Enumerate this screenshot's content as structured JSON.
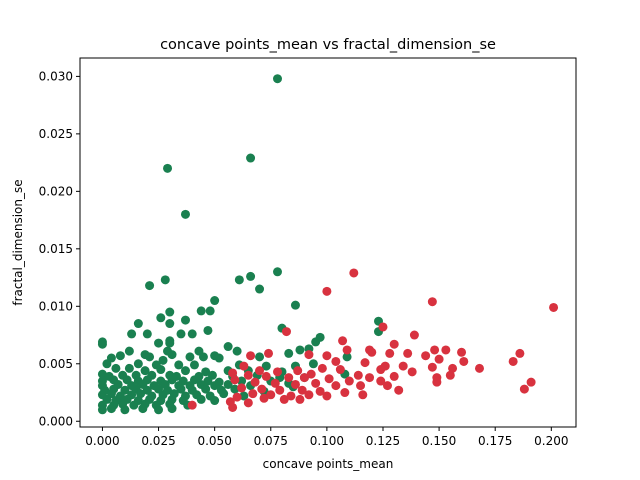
{
  "chart_data": {
    "type": "scatter",
    "title": "concave points_mean vs fractal_dimension_se",
    "xlabel": "concave points_mean",
    "ylabel": "fractal_dimension_se",
    "xlim": [
      -0.01,
      0.211
    ],
    "ylim": [
      -0.0005,
      0.0316
    ],
    "grid": false,
    "legend": "none",
    "x_ticks": [
      {
        "value": 0.0,
        "label": "0.000"
      },
      {
        "value": 0.025,
        "label": "0.025"
      },
      {
        "value": 0.05,
        "label": "0.050"
      },
      {
        "value": 0.075,
        "label": "0.075"
      },
      {
        "value": 0.1,
        "label": "0.100"
      },
      {
        "value": 0.125,
        "label": "0.125"
      },
      {
        "value": 0.15,
        "label": "0.150"
      },
      {
        "value": 0.175,
        "label": "0.175"
      },
      {
        "value": 0.2,
        "label": "0.200"
      }
    ],
    "y_ticks": [
      {
        "value": 0.0,
        "label": "0.000"
      },
      {
        "value": 0.005,
        "label": "0.005"
      },
      {
        "value": 0.01,
        "label": "0.010"
      },
      {
        "value": 0.015,
        "label": "0.015"
      },
      {
        "value": 0.02,
        "label": "0.020"
      },
      {
        "value": 0.025,
        "label": "0.025"
      },
      {
        "value": 0.03,
        "label": "0.030"
      }
    ],
    "series": [
      {
        "color": "#1a8050",
        "points": [
          [
            0.078,
            0.0298
          ],
          [
            0.029,
            0.022
          ],
          [
            0.066,
            0.0229
          ],
          [
            0.037,
            0.018
          ],
          [
            0.028,
            0.0123
          ],
          [
            0.021,
            0.0118
          ],
          [
            0.066,
            0.0126
          ],
          [
            0.061,
            0.0123
          ],
          [
            0.07,
            0.0115
          ],
          [
            0.078,
            0.013
          ],
          [
            0.086,
            0.0101
          ],
          [
            0.05,
            0.0105
          ],
          [
            0.044,
            0.0096
          ],
          [
            0.048,
            0.0096
          ],
          [
            0.03,
            0.0095
          ],
          [
            0.026,
            0.009
          ],
          [
            0.123,
            0.0087
          ],
          [
            0.016,
            0.0085
          ],
          [
            0.03,
            0.0085
          ],
          [
            0.037,
            0.0088
          ],
          [
            0.08,
            0.0081
          ],
          [
            0.123,
            0.0078
          ],
          [
            0.013,
            0.0076
          ],
          [
            0.02,
            0.0076
          ],
          [
            0.035,
            0.0076
          ],
          [
            0.04,
            0.0076
          ],
          [
            0.047,
            0.0079
          ],
          [
            0.03,
            0.007
          ],
          [
            0.025,
            0.0068
          ],
          [
            0.03,
            0.0068
          ],
          [
            0.0,
            0.0069
          ],
          [
            0.0,
            0.0067
          ],
          [
            0.097,
            0.0073
          ],
          [
            0.095,
            0.0069
          ],
          [
            0.109,
            0.0056
          ],
          [
            0.056,
            0.0065
          ],
          [
            0.083,
            0.0059
          ],
          [
            0.088,
            0.0062
          ],
          [
            0.092,
            0.0063
          ],
          [
            0.012,
            0.0061
          ],
          [
            0.029,
            0.0061
          ],
          [
            0.043,
            0.0061
          ],
          [
            0.06,
            0.0061
          ],
          [
            0.019,
            0.0058
          ],
          [
            0.021,
            0.0056
          ],
          [
            0.031,
            0.0058
          ],
          [
            0.05,
            0.0057
          ],
          [
            0.07,
            0.0056
          ],
          [
            0.004,
            0.0055
          ],
          [
            0.008,
            0.0057
          ],
          [
            0.027,
            0.0053
          ],
          [
            0.039,
            0.0056
          ],
          [
            0.045,
            0.0056
          ],
          [
            0.052,
            0.0055
          ],
          [
            0.002,
            0.005
          ],
          [
            0.016,
            0.005
          ],
          [
            0.024,
            0.0049
          ],
          [
            0.034,
            0.0049
          ],
          [
            0.041,
            0.0049
          ],
          [
            0.061,
            0.0049
          ],
          [
            0.073,
            0.0048
          ],
          [
            0.086,
            0.0048
          ],
          [
            0.094,
            0.005
          ],
          [
            0.006,
            0.0046
          ],
          [
            0.012,
            0.0046
          ],
          [
            0.019,
            0.0044
          ],
          [
            0.026,
            0.0045
          ],
          [
            0.037,
            0.0044
          ],
          [
            0.046,
            0.0043
          ],
          [
            0.056,
            0.0044
          ],
          [
            0.065,
            0.0044
          ],
          [
            0.08,
            0.0043
          ],
          [
            0.108,
            0.0041
          ],
          [
            0.0,
            0.0041
          ],
          [
            0.003,
            0.0039
          ],
          [
            0.009,
            0.004
          ],
          [
            0.015,
            0.004
          ],
          [
            0.022,
            0.004
          ],
          [
            0.03,
            0.004
          ],
          [
            0.033,
            0.0039
          ],
          [
            0.043,
            0.0039
          ],
          [
            0.049,
            0.004
          ],
          [
            0.058,
            0.0039
          ],
          [
            0.069,
            0.004
          ],
          [
            0.079,
            0.0038
          ],
          [
            0.09,
            0.0038
          ],
          [
            0.0,
            0.0035
          ],
          [
            0.005,
            0.0036
          ],
          [
            0.011,
            0.0036
          ],
          [
            0.016,
            0.0035
          ],
          [
            0.02,
            0.0036
          ],
          [
            0.026,
            0.0035
          ],
          [
            0.031,
            0.0036
          ],
          [
            0.036,
            0.0035
          ],
          [
            0.041,
            0.0036
          ],
          [
            0.047,
            0.0035
          ],
          [
            0.052,
            0.0034
          ],
          [
            0.062,
            0.0035
          ],
          [
            0.075,
            0.0035
          ],
          [
            0.083,
            0.0033
          ],
          [
            0.0,
            0.0031
          ],
          [
            0.007,
            0.0032
          ],
          [
            0.013,
            0.0031
          ],
          [
            0.018,
            0.0032
          ],
          [
            0.023,
            0.0031
          ],
          [
            0.028,
            0.0032
          ],
          [
            0.034,
            0.0031
          ],
          [
            0.039,
            0.0031
          ],
          [
            0.044,
            0.0032
          ],
          [
            0.05,
            0.0031
          ],
          [
            0.056,
            0.0032
          ],
          [
            0.066,
            0.0031
          ],
          [
            0.085,
            0.003
          ],
          [
            0.001,
            0.0027
          ],
          [
            0.005,
            0.0028
          ],
          [
            0.01,
            0.0027
          ],
          [
            0.015,
            0.0028
          ],
          [
            0.02,
            0.0027
          ],
          [
            0.025,
            0.0028
          ],
          [
            0.029,
            0.0027
          ],
          [
            0.035,
            0.0028
          ],
          [
            0.04,
            0.0027
          ],
          [
            0.046,
            0.0028
          ],
          [
            0.053,
            0.0027
          ],
          [
            0.059,
            0.0028
          ],
          [
            0.072,
            0.0026
          ],
          [
            0.0,
            0.0023
          ],
          [
            0.004,
            0.0024
          ],
          [
            0.008,
            0.0022
          ],
          [
            0.013,
            0.0023
          ],
          [
            0.017,
            0.0024
          ],
          [
            0.022,
            0.0022
          ],
          [
            0.027,
            0.0023
          ],
          [
            0.032,
            0.0024
          ],
          [
            0.037,
            0.0022
          ],
          [
            0.042,
            0.0023
          ],
          [
            0.048,
            0.0022
          ],
          [
            0.054,
            0.0024
          ],
          [
            0.063,
            0.0022
          ],
          [
            0.002,
            0.0019
          ],
          [
            0.006,
            0.0018
          ],
          [
            0.011,
            0.0019
          ],
          [
            0.016,
            0.0018
          ],
          [
            0.021,
            0.0019
          ],
          [
            0.026,
            0.0018
          ],
          [
            0.031,
            0.0019
          ],
          [
            0.036,
            0.0018
          ],
          [
            0.044,
            0.0019
          ],
          [
            0.05,
            0.0018
          ],
          [
            0.0,
            0.0014
          ],
          [
            0.005,
            0.0014
          ],
          [
            0.009,
            0.0015
          ],
          [
            0.014,
            0.0014
          ],
          [
            0.019,
            0.0015
          ],
          [
            0.024,
            0.0014
          ],
          [
            0.03,
            0.0015
          ],
          [
            0.038,
            0.0014
          ],
          [
            0.0,
            0.001
          ],
          [
            0.004,
            0.0011
          ],
          [
            0.01,
            0.001
          ],
          [
            0.018,
            0.0011
          ],
          [
            0.025,
            0.001
          ],
          [
            0.031,
            0.0011
          ]
        ]
      },
      {
        "color": "#d8323f",
        "points": [
          [
            0.201,
            0.0099
          ],
          [
            0.112,
            0.0129
          ],
          [
            0.147,
            0.0104
          ],
          [
            0.1,
            0.0113
          ],
          [
            0.125,
            0.0082
          ],
          [
            0.139,
            0.0075
          ],
          [
            0.082,
            0.0078
          ],
          [
            0.107,
            0.007
          ],
          [
            0.13,
            0.0067
          ],
          [
            0.148,
            0.0062
          ],
          [
            0.153,
            0.0062
          ],
          [
            0.16,
            0.006
          ],
          [
            0.186,
            0.0059
          ],
          [
            0.109,
            0.0062
          ],
          [
            0.119,
            0.0062
          ],
          [
            0.12,
            0.006
          ],
          [
            0.128,
            0.0059
          ],
          [
            0.136,
            0.0059
          ],
          [
            0.074,
            0.0059
          ],
          [
            0.066,
            0.0057
          ],
          [
            0.092,
            0.0058
          ],
          [
            0.1,
            0.0057
          ],
          [
            0.144,
            0.0057
          ],
          [
            0.15,
            0.0054
          ],
          [
            0.161,
            0.0052
          ],
          [
            0.183,
            0.0052
          ],
          [
            0.104,
            0.0052
          ],
          [
            0.117,
            0.0051
          ],
          [
            0.126,
            0.0048
          ],
          [
            0.134,
            0.0048
          ],
          [
            0.147,
            0.0047
          ],
          [
            0.156,
            0.0046
          ],
          [
            0.168,
            0.0046
          ],
          [
            0.098,
            0.0046
          ],
          [
            0.106,
            0.0045
          ],
          [
            0.124,
            0.0045
          ],
          [
            0.138,
            0.0043
          ],
          [
            0.063,
            0.0048
          ],
          [
            0.07,
            0.0044
          ],
          [
            0.078,
            0.0043
          ],
          [
            0.087,
            0.0044
          ],
          [
            0.093,
            0.0041
          ],
          [
            0.114,
            0.004
          ],
          [
            0.119,
            0.0038
          ],
          [
            0.13,
            0.0039
          ],
          [
            0.149,
            0.0038
          ],
          [
            0.155,
            0.004
          ],
          [
            0.058,
            0.0042
          ],
          [
            0.065,
            0.004
          ],
          [
            0.073,
            0.0039
          ],
          [
            0.083,
            0.0038
          ],
          [
            0.09,
            0.0038
          ],
          [
            0.101,
            0.0037
          ],
          [
            0.11,
            0.0035
          ],
          [
            0.124,
            0.0035
          ],
          [
            0.149,
            0.0034
          ],
          [
            0.191,
            0.0034
          ],
          [
            0.059,
            0.0036
          ],
          [
            0.068,
            0.0034
          ],
          [
            0.077,
            0.0033
          ],
          [
            0.086,
            0.0032
          ],
          [
            0.095,
            0.0033
          ],
          [
            0.104,
            0.0031
          ],
          [
            0.115,
            0.0031
          ],
          [
            0.127,
            0.0031
          ],
          [
            0.132,
            0.0027
          ],
          [
            0.188,
            0.0028
          ],
          [
            0.062,
            0.0029
          ],
          [
            0.071,
            0.0028
          ],
          [
            0.079,
            0.0027
          ],
          [
            0.089,
            0.0027
          ],
          [
            0.097,
            0.0026
          ],
          [
            0.108,
            0.0025
          ],
          [
            0.116,
            0.0023
          ],
          [
            0.067,
            0.0024
          ],
          [
            0.075,
            0.0023
          ],
          [
            0.084,
            0.0022
          ],
          [
            0.092,
            0.0023
          ],
          [
            0.1,
            0.0022
          ],
          [
            0.06,
            0.0021
          ],
          [
            0.072,
            0.002
          ],
          [
            0.081,
            0.0019
          ],
          [
            0.088,
            0.0019
          ],
          [
            0.057,
            0.0017
          ],
          [
            0.065,
            0.0016
          ],
          [
            0.04,
            0.0014
          ],
          [
            0.058,
            0.0012
          ]
        ]
      }
    ]
  }
}
